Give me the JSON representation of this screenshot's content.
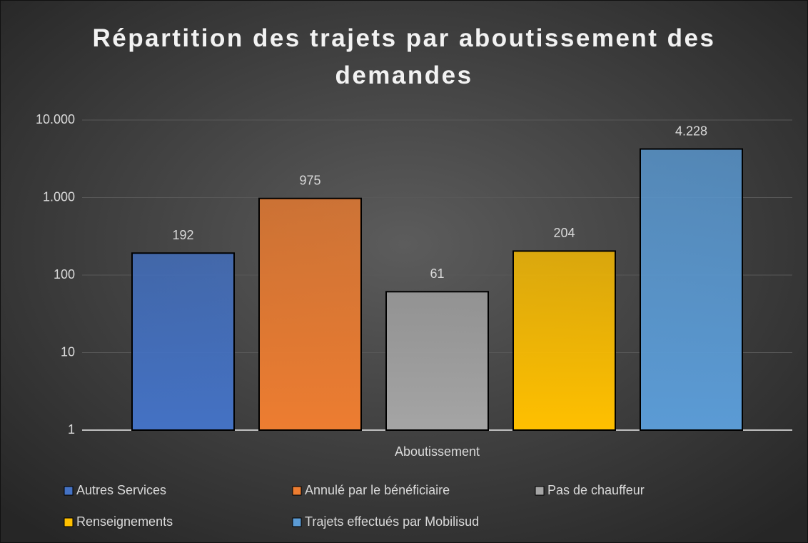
{
  "chart_data": {
    "type": "bar",
    "title": "Répartition des trajets par aboutissement des demandes",
    "categories": [
      "Aboutissement"
    ],
    "series": [
      {
        "name": "Autres Services",
        "color": "#4472c4",
        "values": [
          192
        ]
      },
      {
        "name": "Annulé par le bénéficiaire",
        "color": "#ed7d31",
        "values": [
          975
        ]
      },
      {
        "name": "Pas de chauffeur",
        "color": "#a5a5a5",
        "values": [
          61
        ]
      },
      {
        "name": "Renseignements",
        "color": "#ffc000",
        "values": [
          204
        ]
      },
      {
        "name": "Trajets effectués par Mobilisud",
        "color": "#5b9bd5",
        "values": [
          4228
        ],
        "value_labels": [
          "4.228"
        ]
      }
    ],
    "ylim": [
      1,
      10000
    ],
    "yticks": [
      1,
      10,
      100,
      {
        "value": 1000,
        "label": "1.000"
      },
      {
        "value": 10000,
        "label": "10.000"
      }
    ],
    "log_scale": true,
    "grid": true,
    "legend": "bottom"
  }
}
